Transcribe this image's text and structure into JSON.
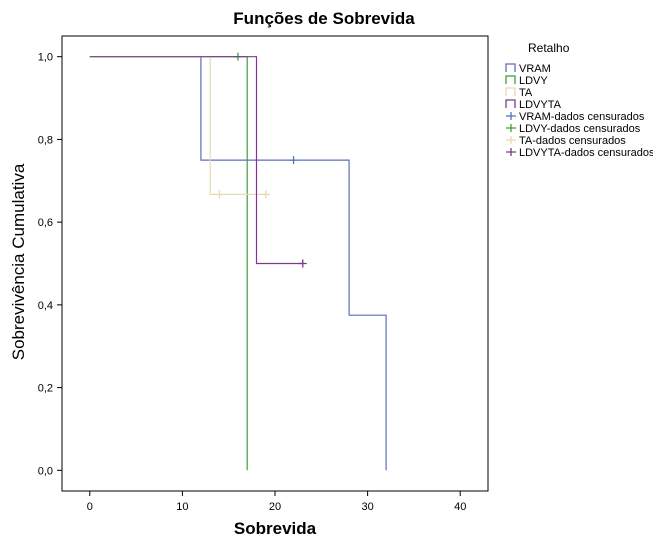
{
  "chart_data": {
    "type": "line",
    "step": true,
    "title": "Funções de Sobrevida",
    "xlabel": "Sobrevida",
    "ylabel": "Sobrevivência Cumulativa",
    "xlim": [
      -3,
      43
    ],
    "ylim": [
      -0.05,
      1.05
    ],
    "xticks": [
      0,
      10,
      20,
      30,
      40
    ],
    "xtick_labels": [
      "0",
      "10",
      "20",
      "30",
      "40"
    ],
    "yticks": [
      0.0,
      0.2,
      0.4,
      0.6,
      0.8,
      1.0
    ],
    "ytick_labels": [
      "0,0",
      "0,2",
      "0,4",
      "0,6",
      "0,8",
      "1,0"
    ],
    "grid": false,
    "legend_title": "Retalho",
    "legend_position": "right",
    "series": [
      {
        "name": "VRAM",
        "color": "#5a6fbd",
        "x": [
          0,
          12,
          12,
          28,
          28,
          32,
          32
        ],
        "y": [
          1.0,
          1.0,
          0.75,
          0.75,
          0.375,
          0.375,
          0.0
        ],
        "censored": {
          "name": "VRAM-dados censurados",
          "x": [
            22
          ],
          "y": [
            0.75
          ]
        }
      },
      {
        "name": "LDVY",
        "color": "#3d9e3d",
        "x": [
          0,
          17,
          17
        ],
        "y": [
          1.0,
          1.0,
          0.0
        ],
        "censored": {
          "name": "LDVY-dados censurados",
          "x": [
            16
          ],
          "y": [
            1.0
          ]
        }
      },
      {
        "name": "TA",
        "color": "#e6dcb4",
        "x": [
          0,
          13,
          13,
          19
        ],
        "y": [
          1.0,
          1.0,
          0.667,
          0.667
        ],
        "censored": {
          "name": "TA-dados censurados",
          "x": [
            14,
            19
          ],
          "y": [
            0.667,
            0.667
          ]
        }
      },
      {
        "name": "LDVYTA",
        "color": "#7d3a8c",
        "x": [
          0,
          18,
          18,
          23
        ],
        "y": [
          1.0,
          1.0,
          0.5,
          0.5
        ],
        "censored": {
          "name": "LDVYTA-dados censurados",
          "x": [
            23
          ],
          "y": [
            0.5
          ]
        }
      }
    ]
  }
}
